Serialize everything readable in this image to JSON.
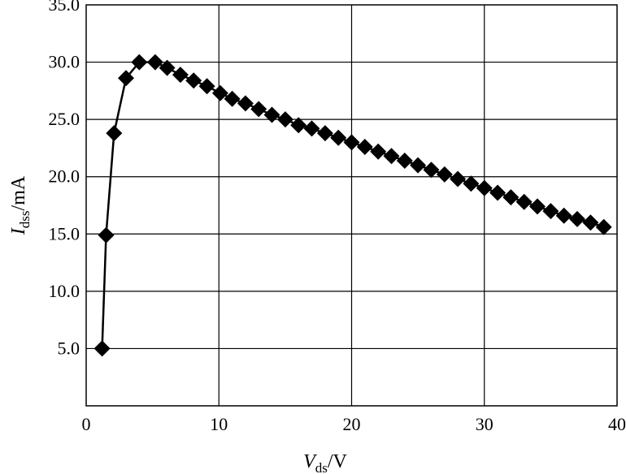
{
  "chart_data": {
    "type": "line",
    "title": "",
    "xlabel": {
      "symbol": "V",
      "subscript": "ds",
      "unit": "/V"
    },
    "ylabel": {
      "symbol": "I",
      "subscript": "dss",
      "unit": "/mA"
    },
    "xlim": [
      0,
      40
    ],
    "ylim": [
      0,
      35
    ],
    "xticks": [
      0,
      10,
      20,
      30,
      40
    ],
    "xtick_labels": [
      "0",
      "10",
      "20",
      "30",
      "40"
    ],
    "yticks": [
      5,
      10,
      15,
      20,
      25,
      30,
      35
    ],
    "ytick_labels": [
      "5.0",
      "10.0",
      "15.0",
      "20.0",
      "25.0",
      "30.0",
      "35.0"
    ],
    "grid": true,
    "legend": "none",
    "marker": "diamond",
    "color": "#000000",
    "series": [
      {
        "x": [
          1.2,
          1.5,
          2.1,
          3.0,
          4.0,
          5.2,
          6.1,
          7.1,
          8.1,
          9.1,
          10.1,
          11.0,
          12.0,
          13.0,
          14.0,
          15.0,
          16.0,
          17.0,
          18.0,
          19.0,
          20.0,
          21.0,
          22.0,
          23.0,
          24.0,
          25.0,
          26.0,
          27.0,
          28.0,
          29.0,
          30.0,
          31.0,
          32.0,
          33.0,
          34.0,
          35.0,
          36.0,
          37.0,
          38.0,
          39.0
        ],
        "y": [
          5.0,
          14.9,
          23.8,
          28.6,
          30.0,
          30.0,
          29.5,
          28.9,
          28.4,
          27.9,
          27.3,
          26.8,
          26.4,
          25.9,
          25.4,
          25.0,
          24.5,
          24.2,
          23.8,
          23.4,
          23.0,
          22.6,
          22.2,
          21.8,
          21.4,
          21.0,
          20.6,
          20.2,
          19.8,
          19.4,
          19.0,
          18.6,
          18.2,
          17.8,
          17.4,
          17.0,
          16.6,
          16.3,
          16.0,
          15.6
        ]
      }
    ]
  }
}
